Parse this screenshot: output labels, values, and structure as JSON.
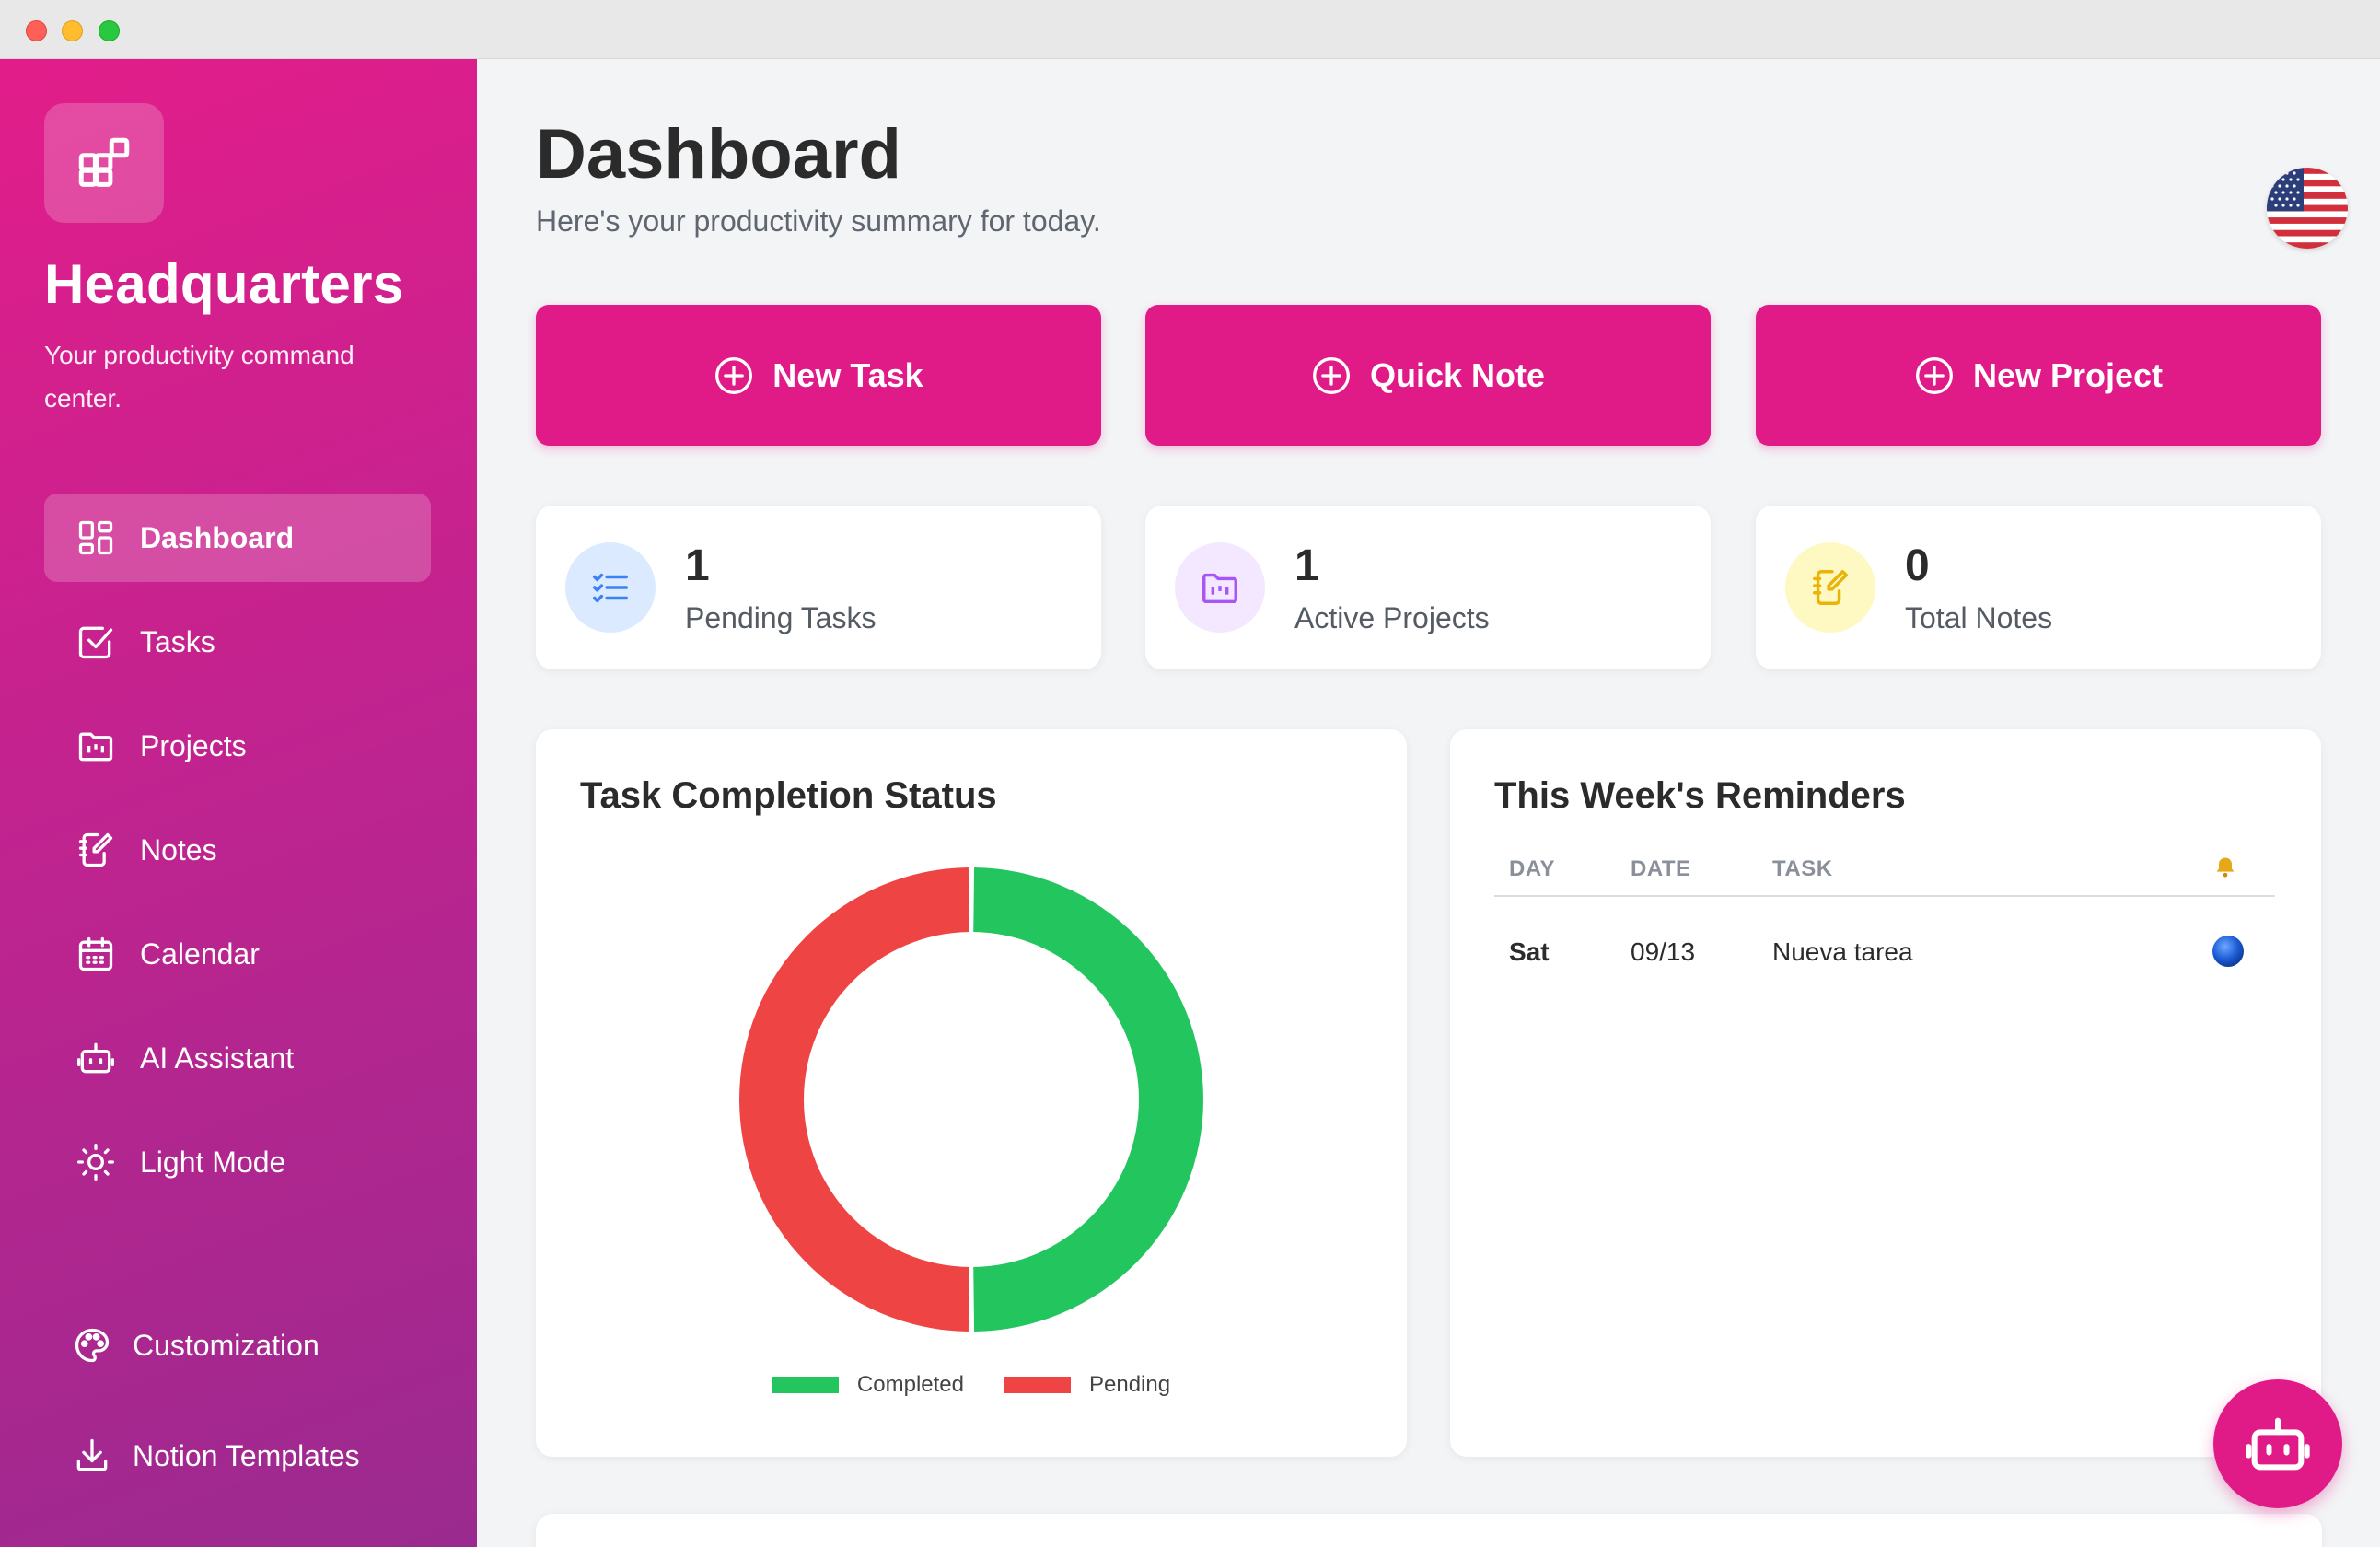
{
  "sidebar": {
    "brand_title": "Headquarters",
    "brand_subtitle": "Your productivity command center.",
    "nav": [
      {
        "label": "Dashboard",
        "icon": "dashboard-icon",
        "active": true
      },
      {
        "label": "Tasks",
        "icon": "checkbox-icon"
      },
      {
        "label": "Projects",
        "icon": "folder-icon"
      },
      {
        "label": "Notes",
        "icon": "notes-icon"
      },
      {
        "label": "Calendar",
        "icon": "calendar-icon"
      },
      {
        "label": "AI Assistant",
        "icon": "robot-icon"
      },
      {
        "label": "Light Mode",
        "icon": "sun-icon"
      }
    ],
    "bottom_nav": [
      {
        "label": "Customization",
        "icon": "palette-icon"
      },
      {
        "label": "Notion Templates",
        "icon": "download-icon"
      }
    ]
  },
  "header": {
    "title": "Dashboard",
    "subtitle": "Here's your productivity summary for today.",
    "language_flag": "us-flag-icon"
  },
  "actions": [
    {
      "label": "New Task"
    },
    {
      "label": "Quick Note"
    },
    {
      "label": "New Project"
    }
  ],
  "stats": [
    {
      "value": "1",
      "label": "Pending Tasks",
      "icon": "task-list-icon",
      "icon_bg": "#dbeafe",
      "icon_color": "#3b82f6"
    },
    {
      "value": "1",
      "label": "Active Projects",
      "icon": "folder-icon",
      "icon_bg": "#f3e8ff",
      "icon_color": "#a855f7"
    },
    {
      "value": "0",
      "label": "Total Notes",
      "icon": "notes-icon",
      "icon_bg": "#fef9c3",
      "icon_color": "#eab308"
    }
  ],
  "task_chart": {
    "title": "Task Completion Status"
  },
  "chart_data": {
    "type": "pie",
    "variant": "doughnut",
    "categories": [
      "Completed",
      "Pending"
    ],
    "values": [
      1,
      1
    ],
    "colors": [
      "#22c55e",
      "#ef4444"
    ],
    "legend": "bottom"
  },
  "reminders": {
    "title": "This Week's Reminders",
    "columns": [
      "DAY",
      "DATE",
      "TASK"
    ],
    "bell_icon": "bell-icon",
    "rows": [
      {
        "day": "Sat",
        "date": "09/13",
        "task": "Nueva tarea",
        "status_icon": "blue-circle-icon"
      }
    ]
  },
  "colors": {
    "accent": "#e01a86",
    "completed": "#22c55e",
    "pending": "#ef4444"
  }
}
